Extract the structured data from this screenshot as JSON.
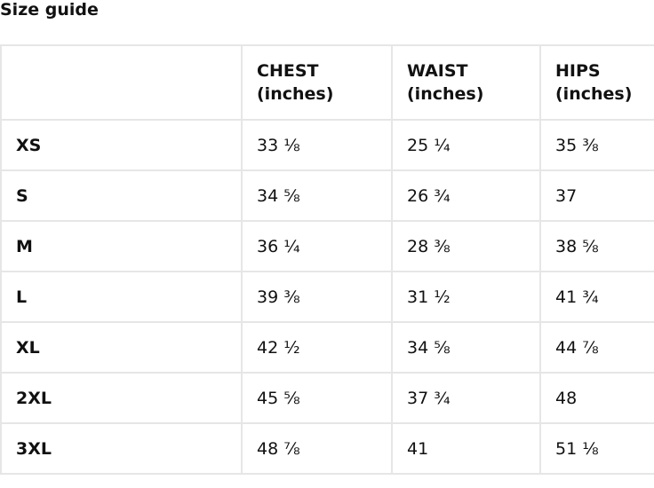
{
  "title": "Size guide",
  "table": {
    "headers": [
      "",
      "CHEST\n(inches)",
      "WAIST\n(inches)",
      "HIPS\n(inches)"
    ],
    "header_lines": [
      [
        "",
        ""
      ],
      [
        "CHEST",
        "(inches)"
      ],
      [
        "WAIST",
        "(inches)"
      ],
      [
        "HIPS",
        "(inches)"
      ]
    ],
    "rows": [
      [
        "XS",
        "33 ⅛",
        "25 ¼",
        "35 ⅜"
      ],
      [
        "S",
        "34 ⅝",
        "26 ¾",
        "37"
      ],
      [
        "M",
        "36 ¼",
        "28 ⅜",
        "38 ⅝"
      ],
      [
        "L",
        "39 ⅜",
        "31 ½",
        "41 ¾"
      ],
      [
        "XL",
        "42 ½",
        "34 ⅝",
        "44 ⅞"
      ],
      [
        "2XL",
        "45 ⅝",
        "37 ¾",
        "48"
      ],
      [
        "3XL",
        "48 ⅞",
        "41",
        "51 ⅛"
      ]
    ]
  }
}
